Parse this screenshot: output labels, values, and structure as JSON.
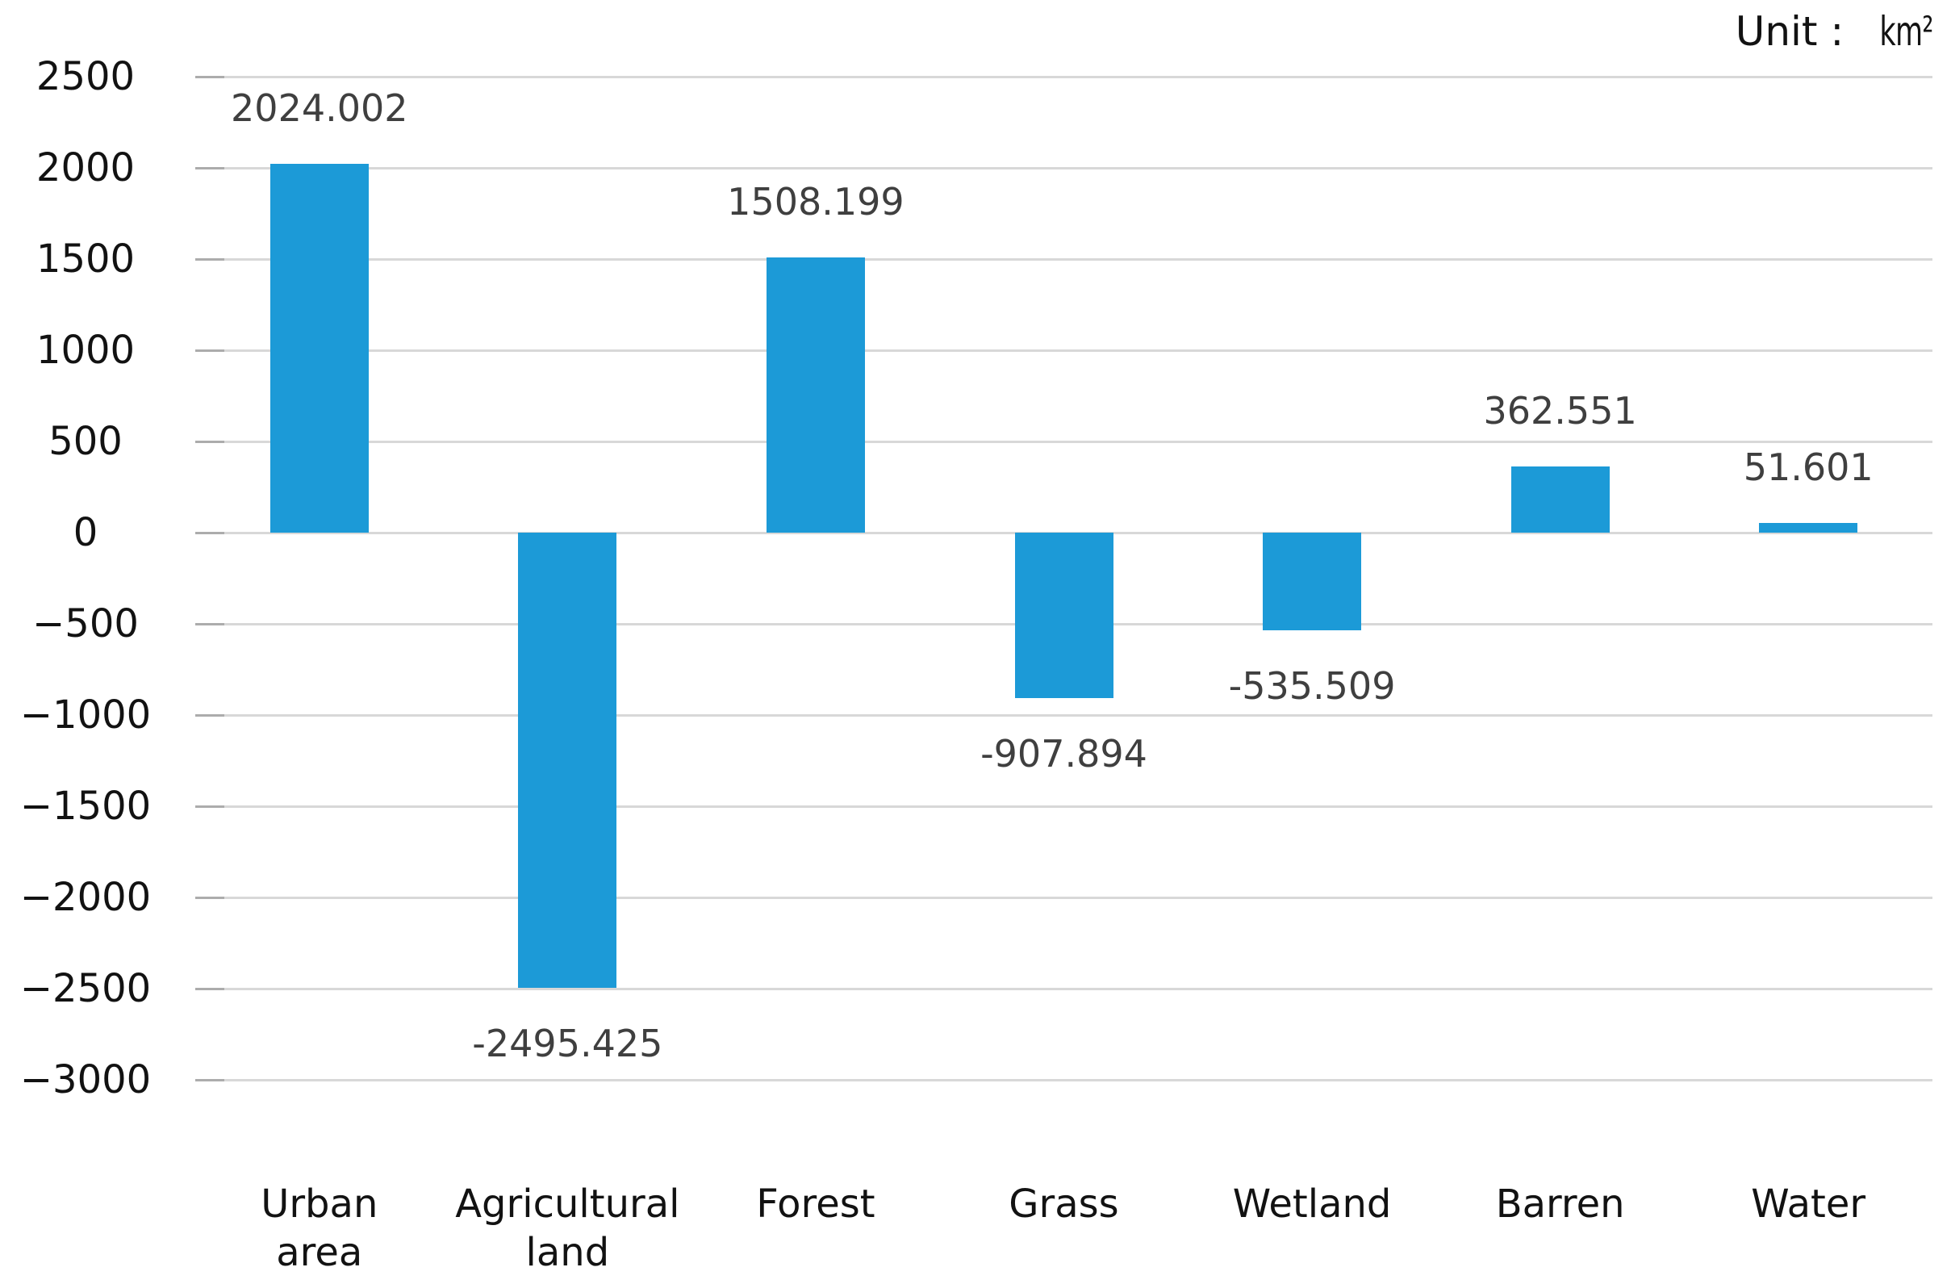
{
  "chart_data": {
    "type": "bar",
    "title": "",
    "xlabel": "",
    "ylabel": "",
    "unit_prefix": "Unit :",
    "unit_value": "km²",
    "categories": [
      "Urban area",
      "Agricultural land",
      "Forest",
      "Grass",
      "Wetland",
      "Barren",
      "Water"
    ],
    "category_display": [
      "Urban\narea",
      "Agricultural\nland",
      "Forest",
      "Grass",
      "Wetland",
      "Barren",
      "Water"
    ],
    "values": [
      2024.002,
      -2495.425,
      1508.199,
      -907.894,
      -535.509,
      362.551,
      51.601
    ],
    "data_labels": [
      "2024.002",
      "-2495.425",
      "1508.199",
      "-907.894",
      "-535.509",
      "362.551",
      "51.601"
    ],
    "ylim": [
      -3000,
      2500
    ],
    "ytick_step": 500,
    "yticks": [
      {
        "value": 2500,
        "label": "2500"
      },
      {
        "value": 2000,
        "label": "2000"
      },
      {
        "value": 1500,
        "label": "1500"
      },
      {
        "value": 1000,
        "label": "1000"
      },
      {
        "value": 500,
        "label": "500"
      },
      {
        "value": 0,
        "label": "0"
      },
      {
        "value": -500,
        "label": "−500"
      },
      {
        "value": -1000,
        "label": "−1000"
      },
      {
        "value": -1500,
        "label": "−1500"
      },
      {
        "value": -2000,
        "label": "−2000"
      },
      {
        "value": -2500,
        "label": "−2500"
      },
      {
        "value": -3000,
        "label": "−3000"
      }
    ],
    "grid": "horizontal",
    "legend": "none",
    "bar_color": "#1C9AD7",
    "gridline_color": "#D8D8D8",
    "tick_color": "#ACACAC",
    "axis_label_color": "#121212",
    "data_label_color": "#3F3F3F"
  }
}
